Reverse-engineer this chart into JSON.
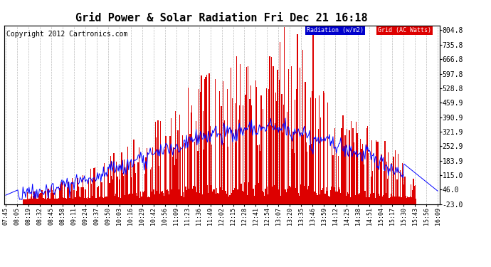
{
  "title": "Grid Power & Solar Radiation Fri Dec 21 16:18",
  "copyright": "Copyright 2012 Cartronics.com",
  "ylabel_right_ticks": [
    804.8,
    735.8,
    666.8,
    597.8,
    528.8,
    459.9,
    390.9,
    321.9,
    252.9,
    183.9,
    115.0,
    46.0,
    -23.0
  ],
  "ylim": [
    -23.0,
    827.8
  ],
  "background_color": "#ffffff",
  "plot_bg_color": "#ffffff",
  "grid_color": "#bbbbbb",
  "radiation_color": "#0000ff",
  "grid_power_color": "#dd0000",
  "legend_radiation_bg": "#0000cc",
  "legend_grid_bg": "#dd0000",
  "legend_text_color": "#ffffff",
  "title_fontsize": 11,
  "copyright_fontsize": 7,
  "x_tick_labels": [
    "07:45",
    "08:05",
    "08:19",
    "08:32",
    "08:45",
    "08:58",
    "09:11",
    "09:24",
    "09:37",
    "09:50",
    "10:03",
    "10:16",
    "10:29",
    "10:42",
    "10:56",
    "11:09",
    "11:23",
    "11:36",
    "11:49",
    "12:02",
    "12:15",
    "12:28",
    "12:41",
    "12:54",
    "13:07",
    "13:20",
    "13:35",
    "13:46",
    "13:59",
    "14:12",
    "14:25",
    "14:38",
    "14:51",
    "15:04",
    "15:17",
    "15:30",
    "15:43",
    "15:56",
    "16:09"
  ],
  "num_points": 500
}
